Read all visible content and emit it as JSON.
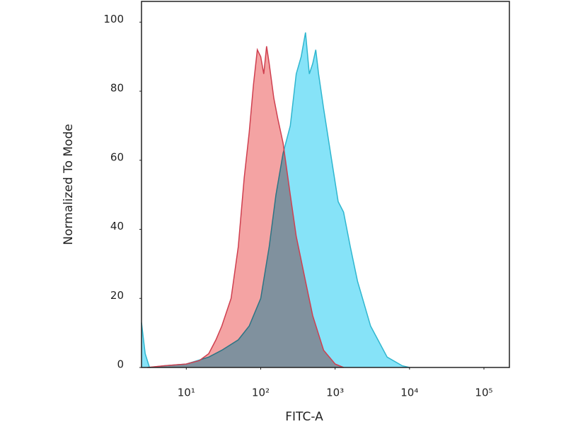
{
  "chart_data": {
    "type": "area",
    "xlabel": "FITC-A",
    "ylabel": "Normalized To Mode",
    "xlog": true,
    "xlim": [
      2.5,
      220000
    ],
    "ylim": [
      0,
      106
    ],
    "xticks": [
      {
        "value": 10,
        "label": "10¹"
      },
      {
        "value": 100,
        "label": "10²"
      },
      {
        "value": 1000,
        "label": "10³"
      },
      {
        "value": 10000,
        "label": "10⁴"
      },
      {
        "value": 100000,
        "label": "10⁵"
      }
    ],
    "yticks": [
      0,
      20,
      40,
      60,
      80,
      100
    ],
    "series": [
      {
        "color": "#86e3f8",
        "line_color": "#2fb6cf",
        "x": [
          2.5,
          2.8,
          3.2,
          5,
          10,
          20,
          30,
          50,
          70,
          100,
          130,
          160,
          200,
          250,
          300,
          350,
          400,
          450,
          500,
          550,
          600,
          700,
          900,
          1100,
          1300,
          1600,
          2000,
          3000,
          5000,
          8000,
          10000
        ],
        "values": [
          13,
          4,
          0,
          0.5,
          1,
          3,
          5,
          8,
          12,
          20,
          35,
          50,
          62,
          70,
          85,
          90,
          97,
          85,
          88,
          92,
          85,
          75,
          60,
          48,
          45,
          35,
          25,
          12,
          3,
          0.5,
          0
        ]
      },
      {
        "color": "#f4a3a3",
        "line_color": "#cf3f4f",
        "x": [
          3,
          5,
          10,
          15,
          20,
          25,
          30,
          40,
          50,
          60,
          70,
          80,
          90,
          100,
          110,
          120,
          130,
          150,
          170,
          200,
          250,
          300,
          400,
          500,
          700,
          1000,
          1300
        ],
        "values": [
          0,
          0.5,
          1,
          2,
          4,
          8,
          12,
          20,
          35,
          55,
          68,
          82,
          92,
          90,
          85,
          93,
          88,
          78,
          72,
          65,
          50,
          38,
          25,
          15,
          5,
          1,
          0
        ]
      }
    ]
  }
}
